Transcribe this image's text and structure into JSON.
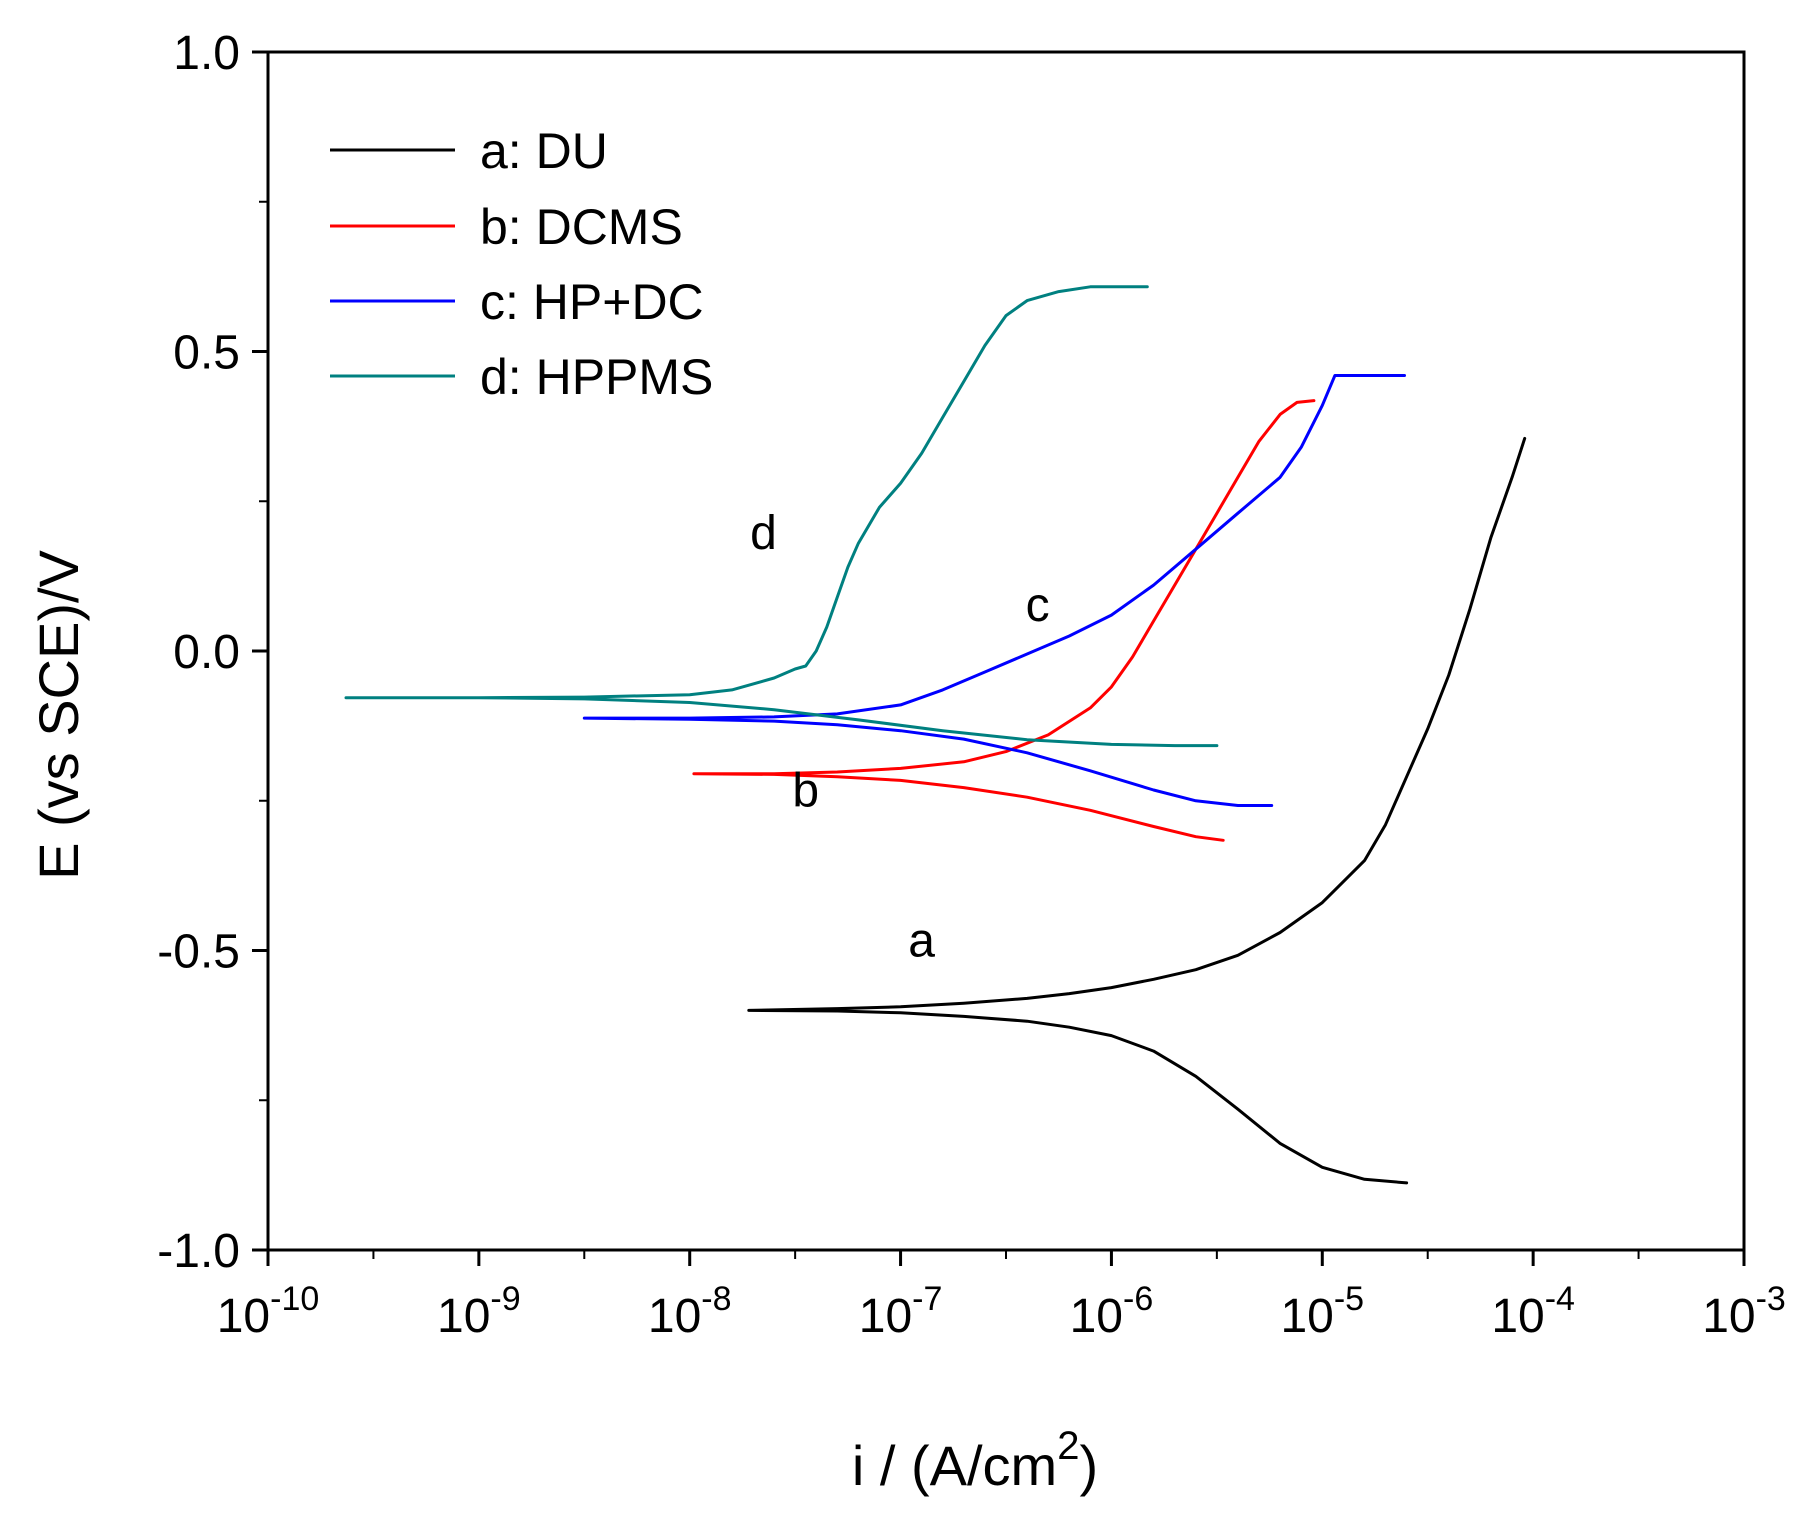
{
  "chart_data": {
    "type": "line",
    "xscale": "log",
    "xlabel": "i / (A/cm",
    "xlabel_sup": "2",
    "xlabel_close": ")",
    "ylabel": "E (vs SCE)/V",
    "xlim_exp": [
      -10,
      -3
    ],
    "ylim": [
      -1.0,
      1.0
    ],
    "x_ticks": [
      {
        "base": "10",
        "exp": "-10",
        "value": -10
      },
      {
        "base": "10",
        "exp": "-9",
        "value": -9
      },
      {
        "base": "10",
        "exp": "-8",
        "value": -8
      },
      {
        "base": "10",
        "exp": "-7",
        "value": -7
      },
      {
        "base": "10",
        "exp": "-6",
        "value": -6
      },
      {
        "base": "10",
        "exp": "-5",
        "value": -5
      },
      {
        "base": "10",
        "exp": "-4",
        "value": -4
      },
      {
        "base": "10",
        "exp": "-3",
        "value": -3
      }
    ],
    "y_ticks": [
      {
        "label": "-1.0",
        "value": -1.0
      },
      {
        "label": "-0.5",
        "value": -0.5
      },
      {
        "label": "0.0",
        "value": 0.0
      },
      {
        "label": "0.5",
        "value": 0.5
      },
      {
        "label": "1.0",
        "value": 1.0
      }
    ],
    "legend_position": "top-left",
    "series": [
      {
        "id": "a",
        "name": "a: DU",
        "color": "#000000",
        "label": "a",
        "label_at": [
          -6.9,
          -0.51
        ],
        "points": [
          [
            -7.72,
            -0.6
          ],
          [
            -7.3,
            -0.597
          ],
          [
            -7.0,
            -0.594
          ],
          [
            -6.7,
            -0.588
          ],
          [
            -6.4,
            -0.58
          ],
          [
            -6.2,
            -0.572
          ],
          [
            -6.0,
            -0.562
          ],
          [
            -5.8,
            -0.548
          ],
          [
            -5.6,
            -0.532
          ],
          [
            -5.4,
            -0.508
          ],
          [
            -5.2,
            -0.47
          ],
          [
            -5.0,
            -0.42
          ],
          [
            -4.8,
            -0.35
          ],
          [
            -4.7,
            -0.29
          ],
          [
            -4.6,
            -0.21
          ],
          [
            -4.5,
            -0.13
          ],
          [
            -4.4,
            -0.04
          ],
          [
            -4.3,
            0.07
          ],
          [
            -4.2,
            0.19
          ],
          [
            -4.1,
            0.29
          ],
          [
            -4.04,
            0.355
          ],
          [
            null,
            null
          ],
          [
            -7.72,
            -0.6
          ],
          [
            -7.3,
            -0.601
          ],
          [
            -7.0,
            -0.604
          ],
          [
            -6.7,
            -0.61
          ],
          [
            -6.4,
            -0.618
          ],
          [
            -6.2,
            -0.628
          ],
          [
            -6.0,
            -0.642
          ],
          [
            -5.8,
            -0.668
          ],
          [
            -5.6,
            -0.71
          ],
          [
            -5.4,
            -0.765
          ],
          [
            -5.2,
            -0.822
          ],
          [
            -5.0,
            -0.862
          ],
          [
            -4.8,
            -0.882
          ],
          [
            -4.6,
            -0.888
          ]
        ]
      },
      {
        "id": "b",
        "name": "b: DCMS",
        "color": "#ff0000",
        "label": "b",
        "label_at": [
          -7.45,
          -0.26
        ],
        "points": [
          [
            -7.98,
            -0.205
          ],
          [
            -7.6,
            -0.205
          ],
          [
            -7.3,
            -0.202
          ],
          [
            -7.0,
            -0.196
          ],
          [
            -6.7,
            -0.185
          ],
          [
            -6.5,
            -0.168
          ],
          [
            -6.3,
            -0.14
          ],
          [
            -6.1,
            -0.095
          ],
          [
            -6.0,
            -0.06
          ],
          [
            -5.9,
            -0.01
          ],
          [
            -5.8,
            0.05
          ],
          [
            -5.7,
            0.11
          ],
          [
            -5.6,
            0.17
          ],
          [
            -5.5,
            0.23
          ],
          [
            -5.4,
            0.29
          ],
          [
            -5.3,
            0.35
          ],
          [
            -5.2,
            0.395
          ],
          [
            -5.12,
            0.415
          ],
          [
            -5.04,
            0.418
          ],
          [
            null,
            null
          ],
          [
            -7.98,
            -0.205
          ],
          [
            -7.6,
            -0.206
          ],
          [
            -7.3,
            -0.21
          ],
          [
            -7.0,
            -0.216
          ],
          [
            -6.7,
            -0.228
          ],
          [
            -6.4,
            -0.244
          ],
          [
            -6.1,
            -0.266
          ],
          [
            -5.8,
            -0.293
          ],
          [
            -5.6,
            -0.31
          ],
          [
            -5.47,
            -0.316
          ]
        ]
      },
      {
        "id": "c",
        "name": "c: HP+DC",
        "color": "#0000ff",
        "label": "c",
        "label_at": [
          -6.35,
          0.05
        ],
        "points": [
          [
            -8.5,
            -0.112
          ],
          [
            -8.0,
            -0.112
          ],
          [
            -7.6,
            -0.11
          ],
          [
            -7.3,
            -0.105
          ],
          [
            -7.0,
            -0.09
          ],
          [
            -6.8,
            -0.065
          ],
          [
            -6.6,
            -0.035
          ],
          [
            -6.4,
            -0.005
          ],
          [
            -6.2,
            0.025
          ],
          [
            -6.0,
            0.06
          ],
          [
            -5.8,
            0.11
          ],
          [
            -5.6,
            0.17
          ],
          [
            -5.4,
            0.23
          ],
          [
            -5.2,
            0.29
          ],
          [
            -5.1,
            0.34
          ],
          [
            -5.0,
            0.41
          ],
          [
            -4.94,
            0.46
          ],
          [
            -4.8,
            0.46
          ],
          [
            -4.61,
            0.46
          ],
          [
            null,
            null
          ],
          [
            -8.5,
            -0.112
          ],
          [
            -8.0,
            -0.114
          ],
          [
            -7.6,
            -0.117
          ],
          [
            -7.3,
            -0.123
          ],
          [
            -7.0,
            -0.133
          ],
          [
            -6.7,
            -0.147
          ],
          [
            -6.4,
            -0.17
          ],
          [
            -6.1,
            -0.2
          ],
          [
            -5.8,
            -0.232
          ],
          [
            -5.6,
            -0.25
          ],
          [
            -5.4,
            -0.258
          ],
          [
            -5.24,
            -0.258
          ]
        ]
      },
      {
        "id": "d",
        "name": "d: HPPMS",
        "color": "#008080",
        "label": "d",
        "label_at": [
          -7.65,
          0.17
        ],
        "points": [
          [
            -9.63,
            -0.078
          ],
          [
            -9.0,
            -0.078
          ],
          [
            -8.5,
            -0.077
          ],
          [
            -8.0,
            -0.073
          ],
          [
            -7.8,
            -0.065
          ],
          [
            -7.6,
            -0.045
          ],
          [
            -7.5,
            -0.03
          ],
          [
            -7.45,
            -0.025
          ],
          [
            -7.4,
            0.0
          ],
          [
            -7.35,
            0.04
          ],
          [
            -7.3,
            0.09
          ],
          [
            -7.25,
            0.14
          ],
          [
            -7.2,
            0.18
          ],
          [
            -7.1,
            0.24
          ],
          [
            -7.0,
            0.28
          ],
          [
            -6.9,
            0.33
          ],
          [
            -6.8,
            0.39
          ],
          [
            -6.7,
            0.45
          ],
          [
            -6.6,
            0.51
          ],
          [
            -6.5,
            0.56
          ],
          [
            -6.4,
            0.585
          ],
          [
            -6.25,
            0.6
          ],
          [
            -6.1,
            0.608
          ],
          [
            -5.83,
            0.608
          ],
          [
            null,
            null
          ],
          [
            -9.63,
            -0.078
          ],
          [
            -9.0,
            -0.078
          ],
          [
            -8.5,
            -0.08
          ],
          [
            -8.0,
            -0.086
          ],
          [
            -7.6,
            -0.098
          ],
          [
            -7.2,
            -0.115
          ],
          [
            -6.8,
            -0.133
          ],
          [
            -6.4,
            -0.148
          ],
          [
            -6.0,
            -0.156
          ],
          [
            -5.7,
            -0.158
          ],
          [
            -5.5,
            -0.158
          ]
        ]
      }
    ]
  }
}
